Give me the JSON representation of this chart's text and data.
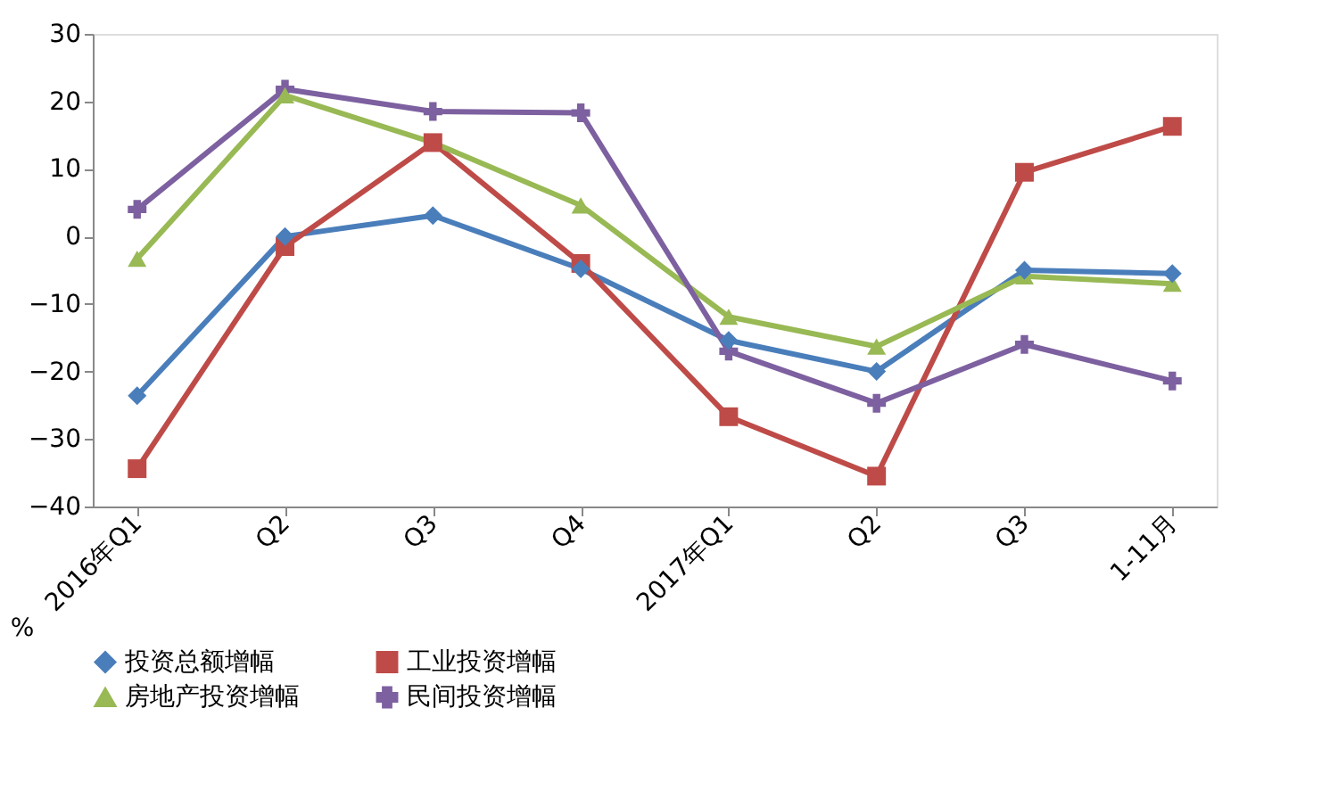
{
  "chart_data": {
    "type": "line",
    "ylabel": "%",
    "categories": [
      "2016年Q1",
      "Q2",
      "Q3",
      "Q4",
      "2017年Q1",
      "Q2",
      "Q3",
      "1-11月"
    ],
    "ylim": [
      -40,
      30
    ],
    "yticks": [
      -40,
      -30,
      -20,
      -10,
      0,
      10,
      20,
      30
    ],
    "grid": false,
    "legend": "bottom",
    "line_style": "solid",
    "series": [
      {
        "name": "投资总额增幅",
        "color": "#4a7ebb",
        "marker": "diamond",
        "values": [
          -23.6,
          0,
          3.1,
          -4.8,
          -15.4,
          -20,
          -5,
          -5.5
        ]
      },
      {
        "name": "工业投资增幅",
        "color": "#be4b48",
        "marker": "square",
        "values": [
          -34.4,
          -1.5,
          13.9,
          -4,
          -26.7,
          -35.5,
          9.5,
          16.3
        ]
      },
      {
        "name": "房地产投资增幅",
        "color": "#98b954",
        "marker": "triangle",
        "values": [
          -3.3,
          20.9,
          13.9,
          4.6,
          -11.9,
          -16.3,
          -5.9,
          -7
        ]
      },
      {
        "name": "民间投资增幅",
        "color": "#7d60a0",
        "marker": "cross",
        "values": [
          4,
          21.8,
          18.5,
          18.3,
          -17,
          -24.7,
          -16,
          -21.4
        ]
      }
    ]
  }
}
